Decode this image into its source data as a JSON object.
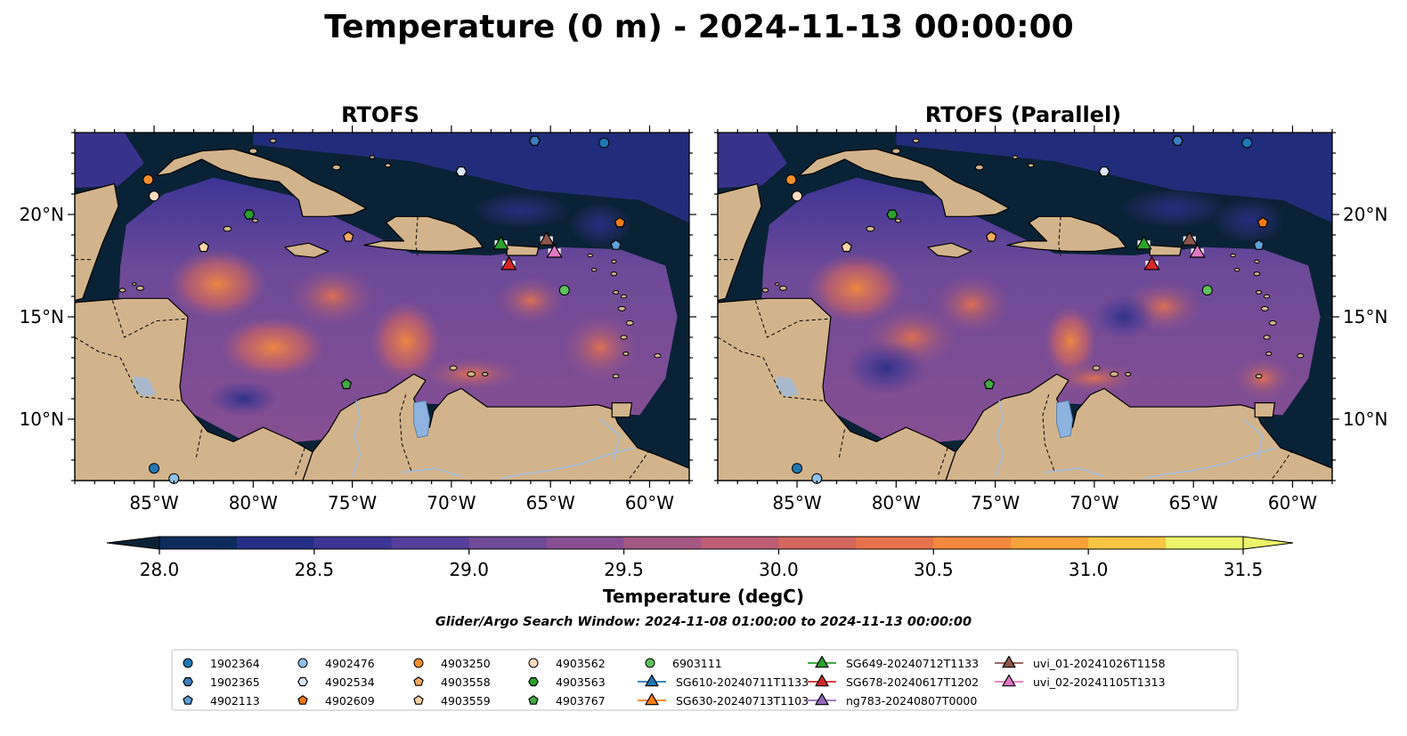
{
  "figure": {
    "title": "Temperature (0 m) - 2024-11-13 00:00:00",
    "search_window": "Glider/Argo Search Window: 2024-11-08 01:00:00 to 2024-11-13 00:00:00"
  },
  "chart_data": {
    "type": "heatmap",
    "variable": "Temperature",
    "depth": "0 m",
    "time": "2024-11-13 00:00:00",
    "panels": [
      {
        "title": "RTOFS"
      },
      {
        "title": "RTOFS (Parallel)"
      }
    ],
    "lon_range": [
      -89,
      -58
    ],
    "lat_range": [
      7,
      24
    ],
    "lon_ticks": [
      -85,
      -80,
      -75,
      -70,
      -65,
      -60
    ],
    "lon_tick_labels": [
      "85°W",
      "80°W",
      "75°W",
      "70°W",
      "65°W",
      "60°W"
    ],
    "lat_ticks": [
      10,
      15,
      20
    ],
    "lat_tick_labels": [
      "10°N",
      "15°N",
      "20°N"
    ],
    "colorbar": {
      "label": "Temperature (degC)",
      "vmin": 28.0,
      "vmax": 31.5,
      "step": 0.25,
      "extend": "both",
      "ticks": [
        28.0,
        28.5,
        29.0,
        29.5,
        30.0,
        30.5,
        31.0,
        31.5
      ],
      "tick_labels": [
        "28.0",
        "28.5",
        "29.0",
        "29.5",
        "30.0",
        "30.5",
        "31.0",
        "31.5"
      ],
      "colors": [
        "#0a2236",
        "#0d2b5c",
        "#262f86",
        "#3d3594",
        "#563f9a",
        "#6e4a98",
        "#874f92",
        "#a55883",
        "#bd5e74",
        "#d5675f",
        "#e7734d",
        "#f3893e",
        "#f8a33b",
        "#f8c544",
        "#ebf46b"
      ]
    },
    "observations": [
      {
        "id": "1902364",
        "kind": "circle",
        "color": "#1f77b4",
        "lon": -85.0,
        "lat": 7.6
      },
      {
        "id": "1902364",
        "kind": "circle",
        "color": "#1f77b4",
        "lon": -62.3,
        "lat": 23.5
      },
      {
        "id": "4902476",
        "kind": "circle",
        "color": "#8ec1e6",
        "lon": -84.0,
        "lat": 7.1
      },
      {
        "id": "1902365",
        "kind": "hexagon",
        "color": "#3c7fc0",
        "lon": -65.8,
        "lat": 23.6
      },
      {
        "id": "4902534",
        "kind": "hexagon",
        "color": "#dbe9f6",
        "lon": -69.5,
        "lat": 22.1
      },
      {
        "id": "4902113",
        "kind": "pentagon",
        "color": "#5fa0d8",
        "lon": -61.7,
        "lat": 18.5
      },
      {
        "id": "4903250",
        "kind": "circle",
        "color": "#f28e2b",
        "lon": -85.3,
        "lat": 21.7
      },
      {
        "id": "4903562",
        "kind": "circle",
        "color": "#fbdcc0",
        "lon": -85.0,
        "lat": 20.9
      },
      {
        "id": "4903558",
        "kind": "pentagon",
        "color": "#f5ab62",
        "lon": -75.2,
        "lat": 18.9
      },
      {
        "id": "4903559",
        "kind": "pentagon",
        "color": "#fcd3a8",
        "lon": -82.5,
        "lat": 18.4
      },
      {
        "id": "4902609",
        "kind": "pentagon",
        "color": "#f37b10",
        "lon": -61.5,
        "lat": 19.6
      },
      {
        "id": "4903563",
        "kind": "hexagon",
        "color": "#2ca02c",
        "lon": -80.2,
        "lat": 20.0
      },
      {
        "id": "4903767",
        "kind": "pentagon",
        "color": "#43aa43",
        "lon": -75.3,
        "lat": 11.7
      },
      {
        "id": "6903111",
        "kind": "circle",
        "color": "#5bc35b",
        "lon": -64.3,
        "lat": 16.3
      }
    ],
    "glider_tracks": [
      {
        "id": "SG649-20240712T1133",
        "color": "#2ca02c",
        "lon": -67.5,
        "lat": 18.6
      },
      {
        "id": "SG678-20240617T1202",
        "color": "#d62728",
        "lon": -67.1,
        "lat": 17.6
      },
      {
        "id": "uvi_01-20241026T1158",
        "color": "#8c564b",
        "lon": -65.2,
        "lat": 18.8
      },
      {
        "id": "uvi_02-20241105T1313",
        "color": "#e377c2",
        "lon": -64.8,
        "lat": 18.2
      }
    ],
    "legend": [
      {
        "label": "1902364",
        "marker": "circle",
        "color": "#1f77b4"
      },
      {
        "label": "1902365",
        "marker": "hexagon",
        "color": "#3c7fc0"
      },
      {
        "label": "4902113",
        "marker": "pentagon",
        "color": "#5fa0d8"
      },
      {
        "label": "4902476",
        "marker": "circle",
        "color": "#8ec1e6"
      },
      {
        "label": "4902534",
        "marker": "hexagon",
        "color": "#dbe9f6"
      },
      {
        "label": "4902609",
        "marker": "pentagon",
        "color": "#f37b10"
      },
      {
        "label": "4903250",
        "marker": "circle",
        "color": "#f28e2b"
      },
      {
        "label": "4903558",
        "marker": "pentagon",
        "color": "#f5ab62"
      },
      {
        "label": "4903559",
        "marker": "pentagon",
        "color": "#fcd3a8"
      },
      {
        "label": "4903562",
        "marker": "circle",
        "color": "#fbdcc0"
      },
      {
        "label": "4903563",
        "marker": "hexagon",
        "color": "#2ca02c"
      },
      {
        "label": "4903767",
        "marker": "pentagon",
        "color": "#43aa43"
      },
      {
        "label": "6903111",
        "marker": "circle",
        "color": "#5bc35b"
      },
      {
        "label": "SG610-20240711T1133",
        "marker": "triangle",
        "color": "#1f77b4"
      },
      {
        "label": "SG630-20240713T1103",
        "marker": "triangle",
        "color": "#ff7f0e"
      },
      {
        "label": "SG649-20240712T1133",
        "marker": "triangle",
        "color": "#2ca02c"
      },
      {
        "label": "SG678-20240617T1202",
        "marker": "triangle",
        "color": "#d62728"
      },
      {
        "label": "ng783-20240807T0000",
        "marker": "triangle",
        "color": "#9467bd"
      },
      {
        "label": "uvi_01-20241026T1158",
        "marker": "triangle",
        "color": "#8c564b"
      },
      {
        "label": "uvi_02-20241105T1313",
        "marker": "triangle",
        "color": "#e377c2"
      }
    ]
  },
  "colors": {
    "land": "#d2b48c",
    "deep_sea": "#0a2236",
    "lake": "#8fb3e0",
    "river": "#a7bcd6"
  }
}
